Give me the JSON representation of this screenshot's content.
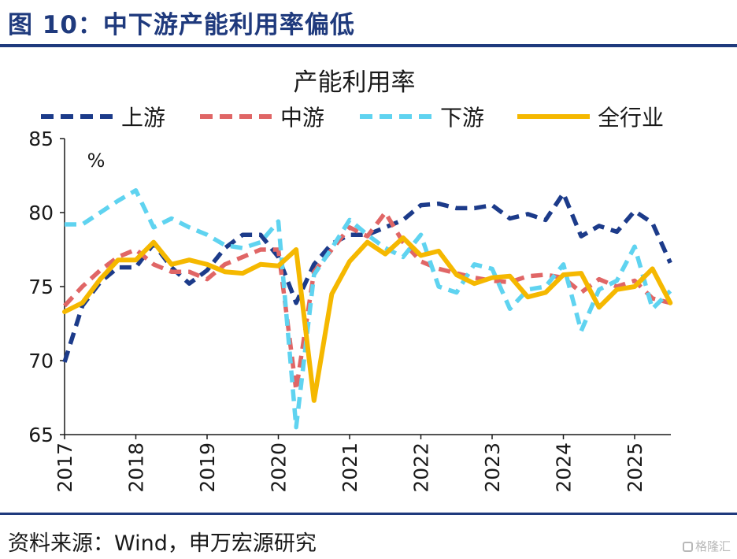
{
  "figure_title": "图 10：中下游产能利用率偏低",
  "source_text": "资料来源：Wind，申万宏源研究",
  "watermark_text": "格隆汇",
  "colors": {
    "brand": "#1f3a7d",
    "upstream": "#1c3b8a",
    "midstream": "#e06666",
    "downstream": "#5fd3f0",
    "all_industry": "#f5b800"
  },
  "chart_data": {
    "type": "line",
    "title": "产能利用率",
    "unit": "%",
    "xlabel": "",
    "ylabel": "",
    "ylim": [
      65,
      85
    ],
    "yticks": [
      65,
      70,
      75,
      80,
      85
    ],
    "xlim": [
      2017,
      2025.5
    ],
    "xticks": [
      "2017",
      "2018",
      "2019",
      "2020",
      "2021",
      "2022",
      "2023",
      "2024",
      "2025"
    ],
    "legend_position": "top",
    "grid": false,
    "x": [
      2017.0,
      2017.25,
      2017.5,
      2017.75,
      2018.0,
      2018.25,
      2018.5,
      2018.75,
      2019.0,
      2019.25,
      2019.5,
      2019.75,
      2020.0,
      2020.25,
      2020.5,
      2020.75,
      2021.0,
      2021.25,
      2021.5,
      2021.75,
      2022.0,
      2022.25,
      2022.5,
      2022.75,
      2023.0,
      2023.25,
      2023.5,
      2023.75,
      2024.0,
      2024.25,
      2024.5,
      2024.75,
      2025.0,
      2025.25,
      2025.5
    ],
    "series": [
      {
        "name": "上游",
        "style": "dashed",
        "color": "#1c3b8a",
        "values": [
          69.9,
          73.7,
          75.3,
          76.3,
          76.3,
          77.9,
          76.3,
          75.2,
          76.1,
          77.6,
          78.5,
          78.5,
          77.0,
          73.9,
          76.5,
          77.9,
          78.5,
          78.5,
          79.0,
          79.5,
          80.5,
          80.6,
          80.3,
          80.3,
          80.5,
          79.6,
          79.9,
          79.5,
          81.3,
          78.4,
          79.1,
          78.7,
          80.1,
          79.3,
          76.6
        ]
      },
      {
        "name": "中游",
        "style": "dashed",
        "color": "#e06666",
        "values": [
          73.7,
          75.0,
          76.1,
          77.0,
          77.5,
          76.5,
          76.0,
          76.0,
          75.5,
          76.5,
          77.0,
          77.5,
          77.5,
          68.0,
          76.0,
          77.5,
          79.0,
          78.4,
          80.0,
          78.0,
          76.7,
          76.2,
          75.9,
          75.6,
          75.4,
          75.3,
          75.7,
          75.8,
          75.6,
          74.6,
          75.5,
          75.0,
          75.4,
          74.2,
          73.9
        ]
      },
      {
        "name": "下游",
        "style": "dashed",
        "color": "#5fd3f0",
        "values": [
          79.2,
          79.2,
          80.0,
          80.8,
          81.5,
          79.0,
          79.6,
          79.0,
          78.5,
          77.8,
          77.6,
          78.0,
          79.4,
          65.5,
          75.8,
          77.6,
          79.5,
          78.5,
          77.6,
          77.0,
          78.5,
          75.0,
          74.6,
          76.5,
          76.2,
          73.5,
          74.8,
          75.0,
          76.5,
          72.0,
          74.8,
          75.4,
          77.7,
          73.5,
          74.7
        ]
      },
      {
        "name": "全行业",
        "style": "solid",
        "color": "#f5b800",
        "values": [
          73.3,
          73.9,
          75.5,
          76.8,
          76.8,
          78.0,
          76.5,
          76.8,
          76.5,
          76.0,
          75.9,
          76.5,
          76.4,
          77.5,
          67.3,
          74.5,
          76.7,
          78.0,
          77.2,
          78.3,
          77.1,
          77.4,
          75.8,
          75.2,
          75.6,
          75.7,
          74.3,
          74.6,
          75.8,
          75.9,
          73.6,
          74.8,
          75.0,
          76.2,
          73.9
        ]
      }
    ]
  }
}
